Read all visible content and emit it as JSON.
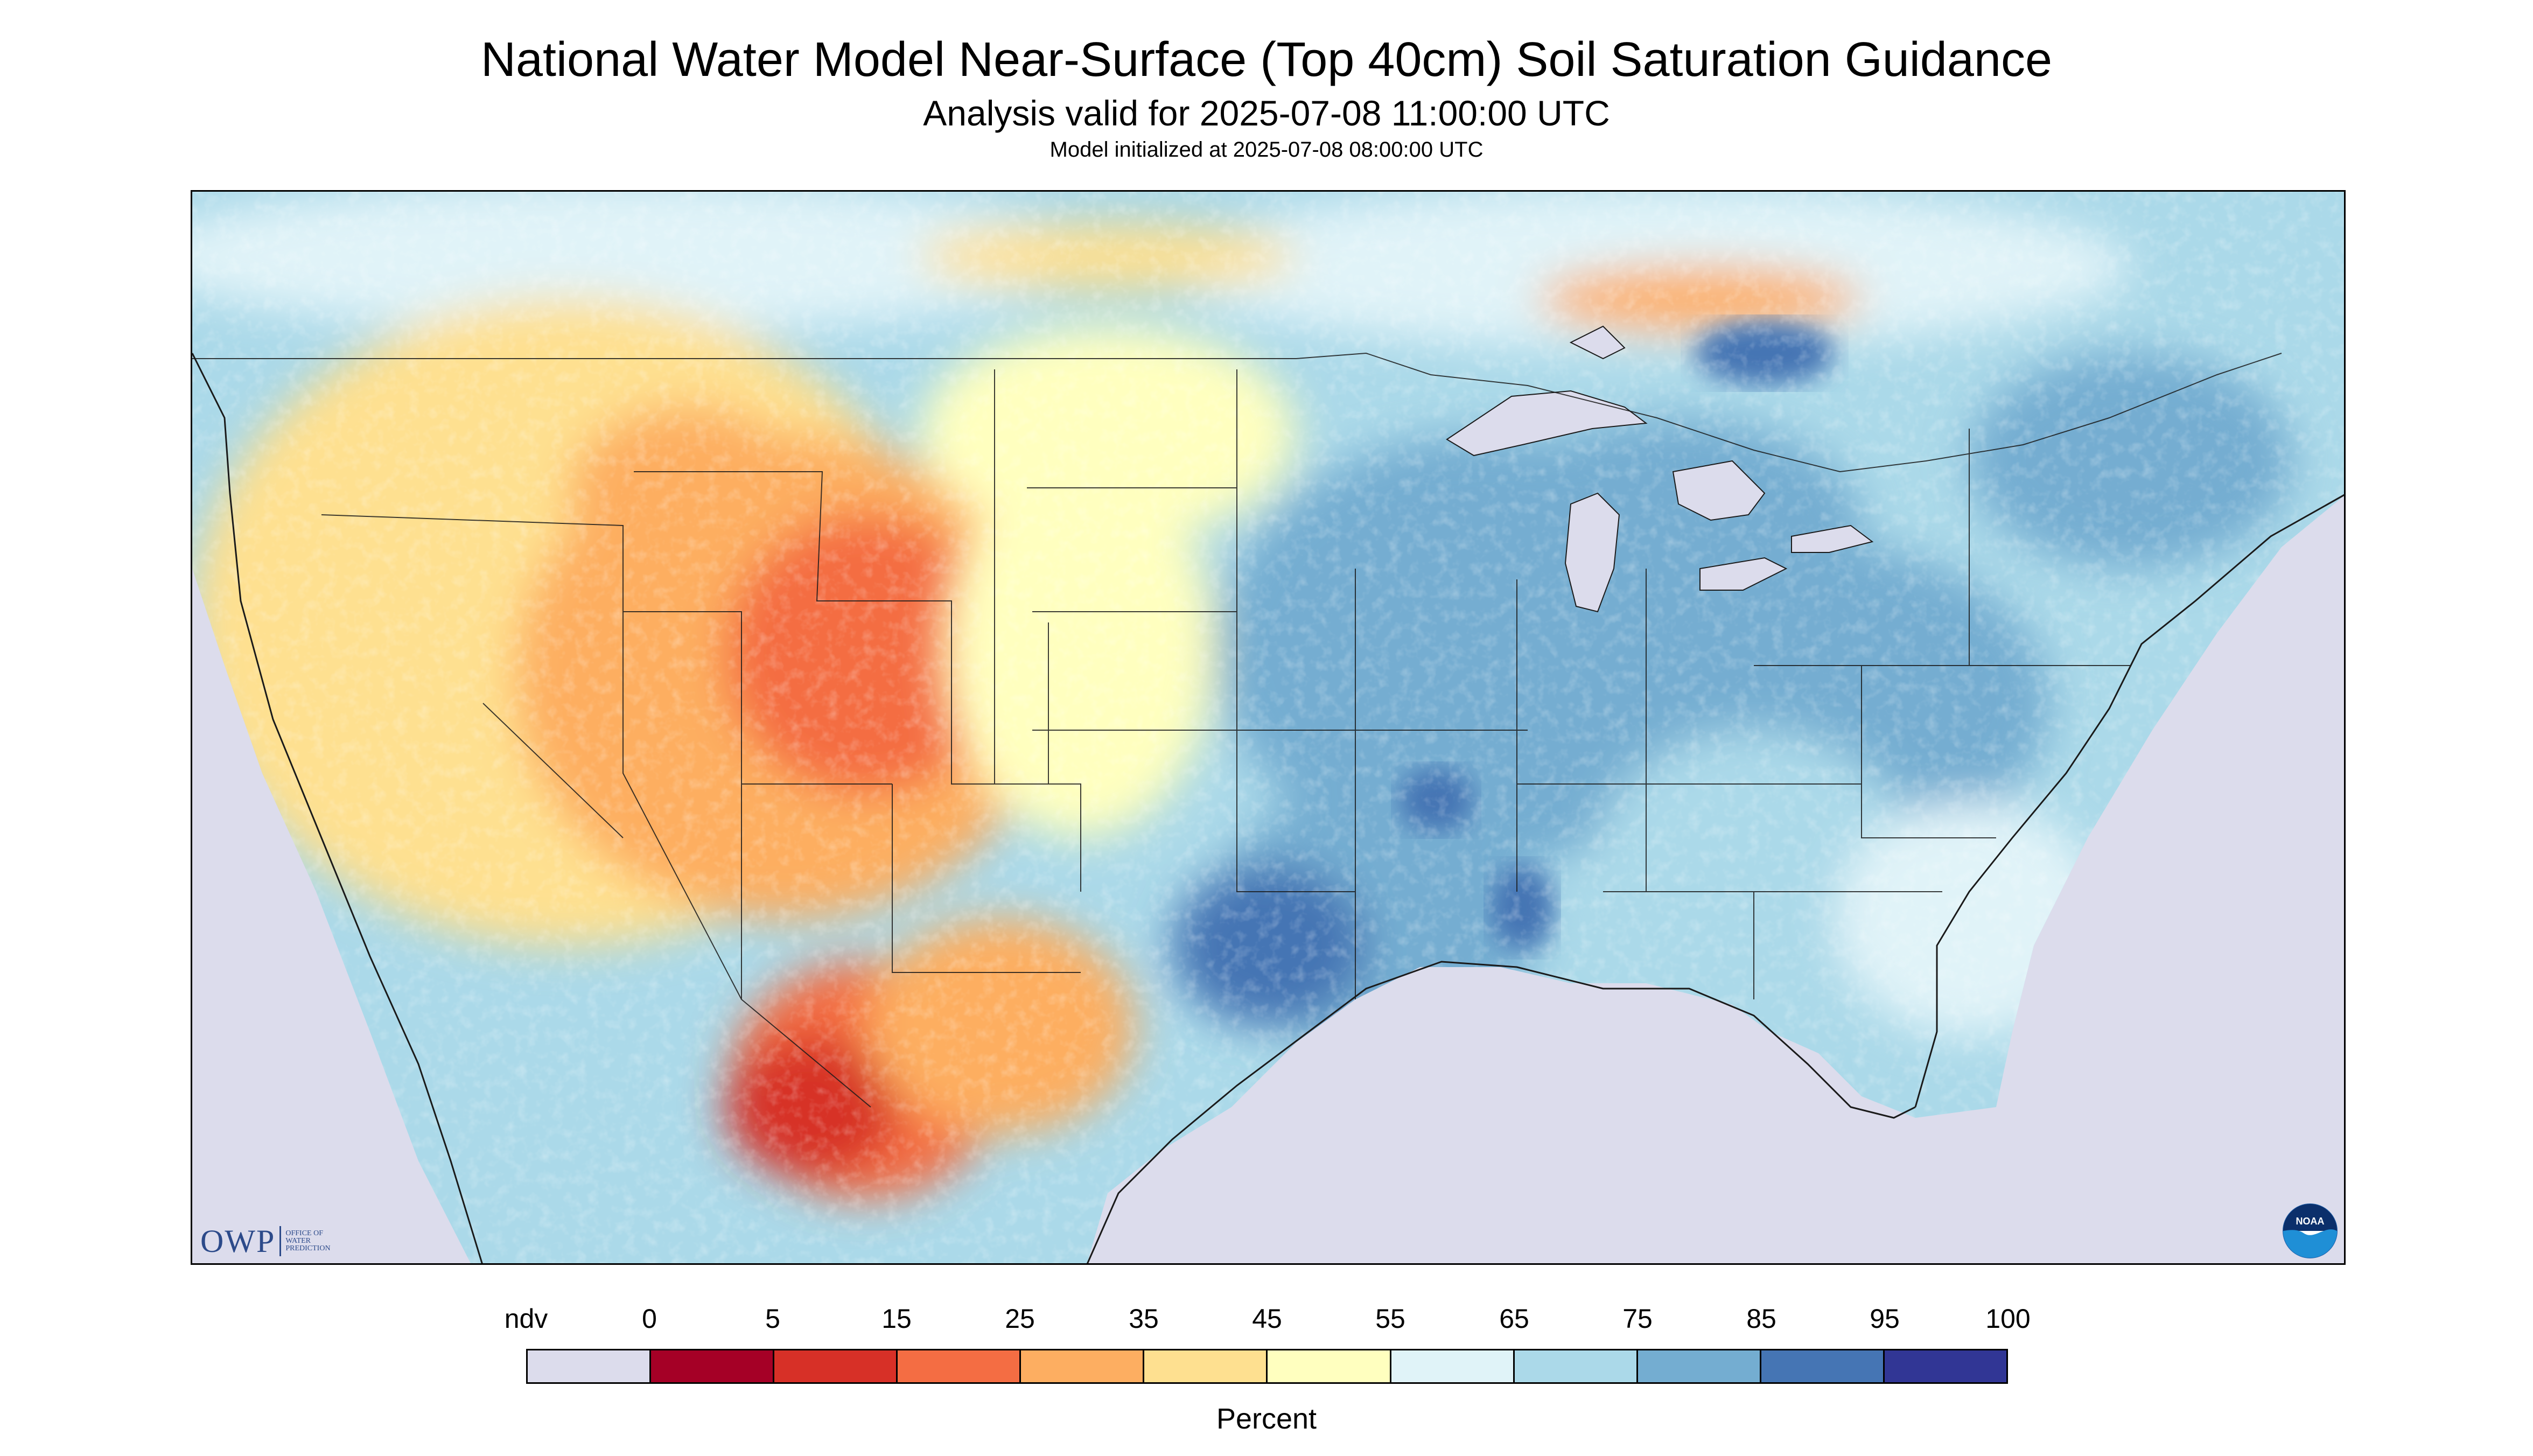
{
  "title": "National Water Model Near-Surface (Top 40cm) Soil Saturation Guidance",
  "subtitle": "Analysis valid for 2025-07-08 11:00:00 UTC",
  "subsubtitle": "Model initialized at 2025-07-08 08:00:00 UTC",
  "map": {
    "region": "Contiguous United States",
    "background_ndv_color": "#dcdcec",
    "boundary_color": "#1a1a1a"
  },
  "logos": {
    "owp_text": "OWP",
    "owp_subtext": "OFFICE OF\nWATER\nPREDICTION",
    "noaa_text": "NOAA"
  },
  "legend": {
    "unit_label": "Percent",
    "tick_labels": [
      "ndv",
      "0",
      "5",
      "15",
      "25",
      "35",
      "45",
      "55",
      "65",
      "75",
      "85",
      "95",
      "100"
    ],
    "colors": [
      "#dcdcec",
      "#a50026",
      "#d73027",
      "#f46d43",
      "#fdae61",
      "#fee090",
      "#ffffbf",
      "#e0f3f8",
      "#abd9e9",
      "#74add1",
      "#4575b4",
      "#313695"
    ]
  }
}
